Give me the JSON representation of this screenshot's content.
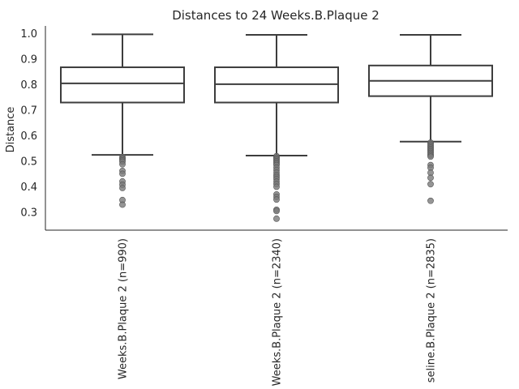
{
  "chart_data": {
    "type": "box",
    "title": "Distances to 24 Weeks.B.Plaque 2",
    "xlabel": "",
    "ylabel": "Distance",
    "ylim": [
      0.23,
      1.03
    ],
    "yticks": [
      0.3,
      0.4,
      0.5,
      0.6,
      0.7,
      0.8,
      0.9,
      1.0
    ],
    "ytick_labels": [
      "0.3",
      "0.4",
      "0.5",
      "0.6",
      "0.7",
      "0.8",
      "0.9",
      "1.0"
    ],
    "grid": false,
    "categories": [
      "Weeks.B.Plaque 2 (n=990)",
      "Weeks.B.Plaque 2 (n=2340)",
      "seline.B.Plaque 2 (n=2835)"
    ],
    "boxes": [
      {
        "whisker_low": 0.525,
        "q1": 0.73,
        "median": 0.805,
        "q3": 0.868,
        "whisker_high": 0.997,
        "outliers": [
          0.517,
          0.512,
          0.508,
          0.503,
          0.498,
          0.488,
          0.462,
          0.451,
          0.421,
          0.408,
          0.395,
          0.348,
          0.33
        ]
      },
      {
        "whisker_low": 0.522,
        "q1": 0.73,
        "median": 0.802,
        "q3": 0.868,
        "whisker_high": 0.995,
        "outliers": [
          0.52,
          0.515,
          0.51,
          0.505,
          0.5,
          0.495,
          0.49,
          0.485,
          0.475,
          0.465,
          0.455,
          0.445,
          0.438,
          0.43,
          0.42,
          0.41,
          0.4,
          0.37,
          0.36,
          0.35,
          0.31,
          0.305,
          0.275
        ]
      },
      {
        "whisker_low": 0.577,
        "q1": 0.755,
        "median": 0.815,
        "q3": 0.875,
        "whisker_high": 0.995,
        "outliers": [
          0.573,
          0.568,
          0.563,
          0.558,
          0.553,
          0.548,
          0.543,
          0.538,
          0.533,
          0.528,
          0.523,
          0.518,
          0.485,
          0.475,
          0.455,
          0.435,
          0.41,
          0.345
        ]
      }
    ],
    "colors": {
      "box_edge": "#3d3d3d",
      "box_fill": "#ffffff",
      "outlier_fill": "#7a7a7a",
      "axis": "#262626"
    }
  }
}
